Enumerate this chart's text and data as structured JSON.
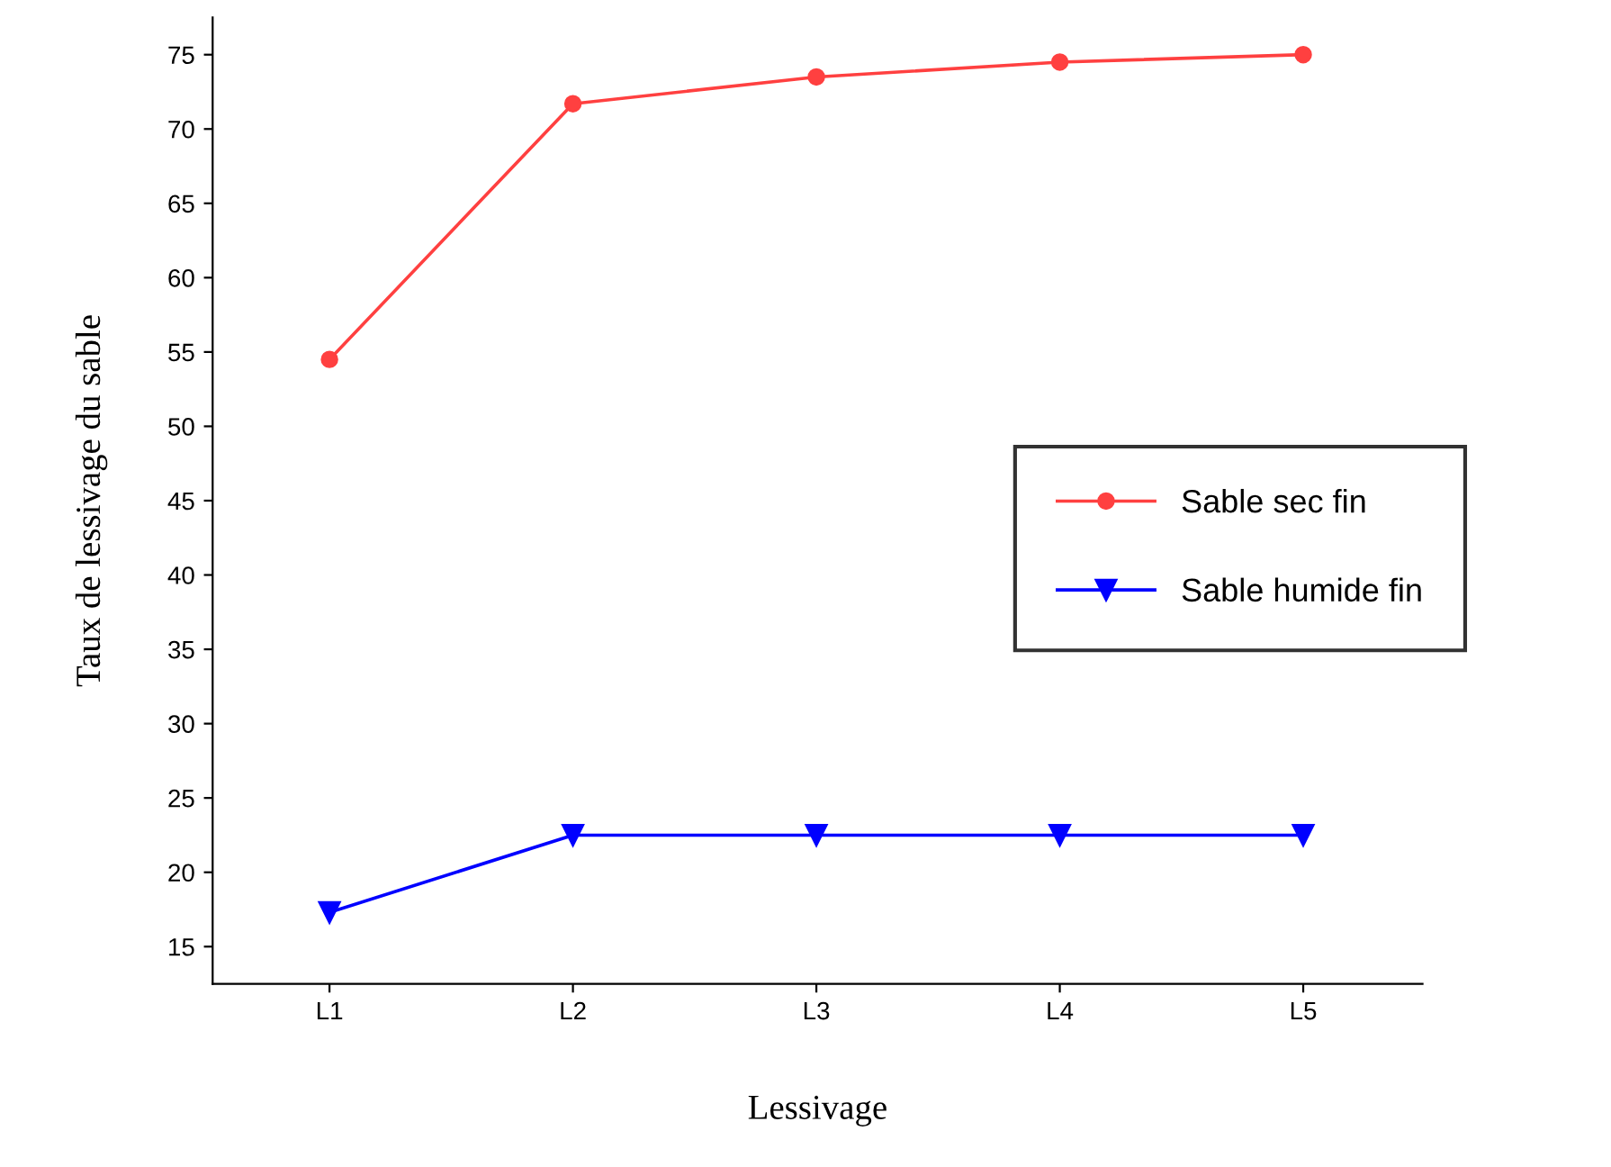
{
  "chart_data": {
    "type": "line",
    "xlabel": "Lessivage",
    "ylabel": "Taux de lessivage du sable",
    "categories": [
      "L1",
      "L2",
      "L3",
      "L4",
      "L5"
    ],
    "series": [
      {
        "name": "Sable sec fin",
        "color": "#ff4040",
        "marker": "circle",
        "values": [
          54.5,
          71.7,
          73.5,
          74.5,
          75
        ]
      },
      {
        "name": "Sable humide fin",
        "color": "#0000ff",
        "marker": "triangle",
        "values": [
          17.3,
          22.5,
          22.5,
          22.5,
          22.5
        ]
      }
    ],
    "ylim": [
      12.5,
      77.5
    ],
    "yticks": [
      15,
      20,
      25,
      30,
      35,
      40,
      45,
      50,
      55,
      60,
      65,
      70,
      75
    ],
    "grid": false,
    "legend": "right"
  }
}
